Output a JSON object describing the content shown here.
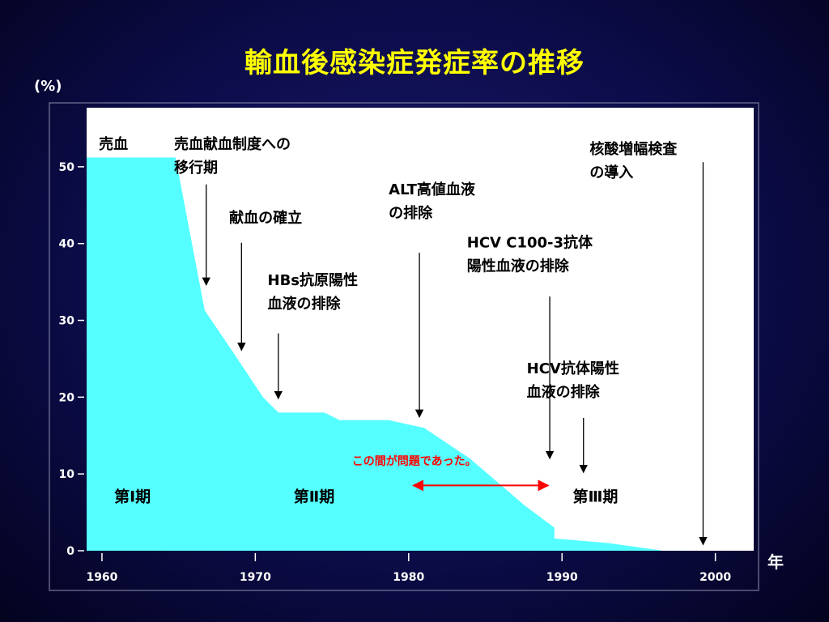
{
  "slide": {
    "title": "輸血後感染症発症率の推移",
    "unit": "(%)",
    "year_label": "年"
  },
  "chart_data": {
    "type": "area",
    "xlim": [
      1959,
      2002.5
    ],
    "ylim": [
      0,
      55
    ],
    "yticks": [
      0,
      10,
      20,
      30,
      40,
      50
    ],
    "xticks": [
      1960,
      1970,
      1980,
      1990,
      2000
    ],
    "colors": {
      "fill": "#55ffff",
      "plot_bg": "#ffffff"
    },
    "series": [
      {
        "x": [
          1959,
          1964.8,
          1966.7,
          1968.5,
          1970.5,
          1971.5,
          1974.5,
          1975.5,
          1978.7,
          1981,
          1984,
          1987.5,
          1989.5,
          1989.5,
          1993,
          1996.6,
          2002.5
        ],
        "y": [
          51.2,
          51.2,
          31.3,
          26,
          20,
          18,
          18,
          17,
          17,
          16,
          12,
          6,
          3,
          1.6,
          1,
          0,
          0
        ]
      }
    ],
    "annotations": [
      {
        "lines": [
          "売血"
        ],
        "x": 1959.8,
        "y": 52.3
      },
      {
        "lines": [
          "売血献血制度への",
          "移行期"
        ],
        "x": 1964.7,
        "y": 52.3,
        "arrow": {
          "x": 1966.8,
          "from": 47.7,
          "to": 34.6
        }
      },
      {
        "lines": [
          "献血の確立"
        ],
        "x": 1968.3,
        "y": 42.7,
        "arrow": {
          "x": 1969.1,
          "from": 40.1,
          "to": 26.1
        }
      },
      {
        "lines": [
          "HBs抗原陽性",
          "血液の排除"
        ],
        "x": 1970.8,
        "y": 34.6,
        "arrow": {
          "x": 1971.5,
          "from": 28.3,
          "to": 19.8
        }
      },
      {
        "lines": [
          "ALT高値血液",
          "の排除"
        ],
        "x": 1978.7,
        "y": 46.4,
        "arrow": {
          "x": 1980.7,
          "from": 38.8,
          "to": 17.4
        }
      },
      {
        "lines": [
          "HCV  C100-3抗体",
          "陽性血液の排除"
        ],
        "x": 1983.8,
        "y": 39.5,
        "arrow": {
          "x": 1989.2,
          "from": 33.1,
          "to": 12
        }
      },
      {
        "lines": [
          "HCV抗体陽性",
          "血液の排除"
        ],
        "x": 1987.7,
        "y": 23.1,
        "arrow": {
          "x": 1991.4,
          "from": 17.3,
          "to": 10.2
        }
      },
      {
        "lines": [
          "核酸増幅検査",
          "の導入"
        ],
        "x": 1991.8,
        "y": 51.7,
        "arrow": {
          "x": 1999.2,
          "from": 50.6,
          "to": 0.8
        }
      }
    ],
    "periods": [
      {
        "label": "第Ⅰ期",
        "x": 1960.8,
        "y": 6.4
      },
      {
        "label": "第Ⅱ期",
        "x": 1972.5,
        "y": 6.4
      },
      {
        "label": "第Ⅲ期",
        "x": 1990.7,
        "y": 6.4
      }
    ],
    "note": {
      "text": "この間が問題であった。",
      "x": 1976.3,
      "y": 11.2,
      "arrow_x": [
        1980.3,
        1989.1
      ],
      "arrow_y": 8.5,
      "color": "#ff0000"
    }
  }
}
